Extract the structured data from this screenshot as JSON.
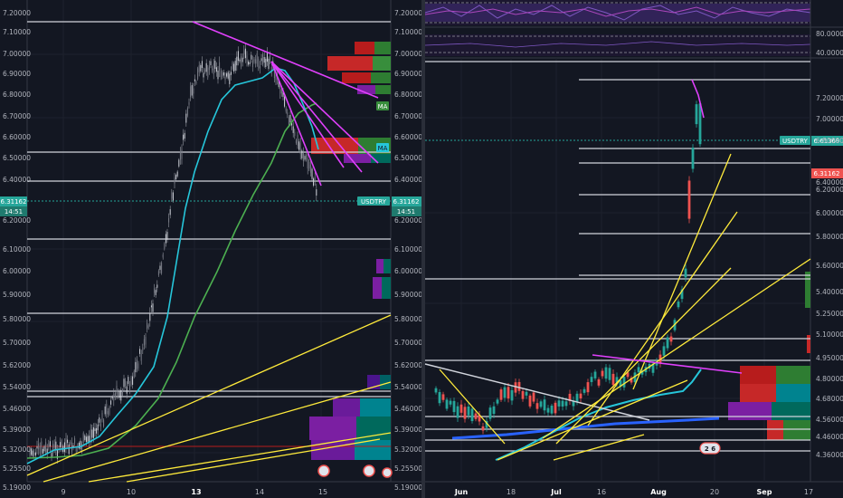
{
  "left_chart": {
    "price_axis": [
      "7.20000",
      "7.10000",
      "7.00000",
      "6.90000",
      "6.80000",
      "6.70000",
      "6.60000",
      "6.50000",
      "6.40000",
      "6.20000",
      "6.10000",
      "6.00000",
      "5.90000",
      "5.80000",
      "5.70000",
      "5.62000",
      "5.54000",
      "5.46000",
      "5.39000",
      "5.32000",
      "5.25500",
      "5.19000"
    ],
    "time_axis": [
      {
        "label": "9",
        "bold": false
      },
      {
        "label": "10",
        "bold": false
      },
      {
        "label": "13",
        "bold": true
      },
      {
        "label": "14",
        "bold": false
      },
      {
        "label": "15",
        "bold": false
      }
    ],
    "symbol_tag": "USDTRY",
    "price_tag": "6.31162",
    "countdown_tag": "14:51",
    "ma_tags": [
      "MA",
      "MA"
    ],
    "colors": {
      "candle_up": "#b2b5be",
      "ma_cyan": "#26c6da",
      "ma_green": "#4caf50",
      "trend_magenta": "#e040fb",
      "trend_yellow": "#ffeb3b",
      "level_white": "#d1d4dc",
      "tag_green": "#26a69a"
    }
  },
  "right_chart": {
    "price_axis": [
      "7.20000",
      "7.00000",
      "6.80000",
      "6.40000",
      "6.20000",
      "6.00000",
      "5.80000",
      "5.60000",
      "5.40000",
      "5.25000",
      "5.10000",
      "4.95000",
      "4.80000",
      "4.68000",
      "4.56000",
      "4.46000",
      "4.36000"
    ],
    "oscillator_axis": [
      "80.0000",
      "40.0000"
    ],
    "time_axis": [
      {
        "label": "Jun",
        "bold": true
      },
      {
        "label": "18",
        "bold": false
      },
      {
        "label": "Jul",
        "bold": true
      },
      {
        "label": "16",
        "bold": false
      },
      {
        "label": "Aug",
        "bold": true
      },
      {
        "label": "20",
        "bold": false
      },
      {
        "label": "Sep",
        "bold": true
      },
      {
        "label": "17",
        "bold": false
      }
    ],
    "symbol_tag": "USDTRY",
    "price_tag": "6.61369",
    "last_tag": "6.31162",
    "event_badge": "2 6",
    "colors": {
      "candle_up": "#26a69a",
      "candle_down": "#ef5350",
      "ma_cyan": "#26c6da",
      "ma_blue": "#2962ff",
      "trend_magenta": "#e040fb",
      "trend_yellow": "#ffeb3b",
      "osc_purple": "#7e57c2"
    }
  },
  "chart_data": [
    {
      "type": "line",
      "title": "",
      "series": [
        {
          "x": [
            8.6,
            9.0,
            9.5,
            10.0,
            10.5,
            11.0,
            11.6,
            12.0,
            12.5,
            13.0,
            13.3,
            13.6,
            14.0,
            14.2,
            14.4,
            14.6
          ],
          "values": [
            5.31,
            5.32,
            5.33,
            5.36,
            5.42,
            5.55,
            5.7,
            6.0,
            6.5,
            6.92,
            6.95,
            6.92,
            6.95,
            6.85,
            6.55,
            6.42
          ]
        },
        {
          "x": [
            8.6,
            9.2,
            9.8,
            10.4,
            11.0,
            11.6,
            12.0,
            12.4,
            12.8,
            13.2,
            13.6,
            14.0,
            14.3,
            14.5,
            14.7
          ],
          "values": [
            5.3,
            5.32,
            5.33,
            5.36,
            5.42,
            5.52,
            5.7,
            6.1,
            6.4,
            6.7,
            6.8,
            6.88,
            6.85,
            6.7,
            6.52
          ]
        },
        {
          "x": [
            8.6,
            9.2,
            10.0,
            10.8,
            11.4,
            12.0,
            12.6,
            13.2,
            13.8,
            14.2,
            14.6,
            14.9
          ],
          "values": [
            5.27,
            5.28,
            5.29,
            5.33,
            5.4,
            5.55,
            5.85,
            6.15,
            6.45,
            6.7,
            6.73,
            6.75
          ]
        }
      ],
      "ylim": [
        5.19,
        7.2
      ],
      "xlabel": "",
      "ylabel": ""
    },
    {
      "type": "line",
      "title": "",
      "series": [
        {
          "x": [
            "Jun 1",
            "Jun 15",
            "Jul 1",
            "Jul 15",
            "Aug 1",
            "Aug 8",
            "Aug 10",
            "Aug 13",
            "Aug 14"
          ],
          "values": [
            4.65,
            4.55,
            4.6,
            4.72,
            4.85,
            5.4,
            6.0,
            6.9,
            6.45
          ]
        },
        {
          "x": [
            "Jun 10",
            "Jul 1",
            "Jul 20",
            "Aug 1",
            "Aug 10"
          ],
          "values": [
            4.52,
            4.6,
            4.72,
            4.82,
            4.9
          ]
        }
      ],
      "ylim": [
        4.36,
        7.3
      ],
      "xlabel": "",
      "ylabel": ""
    }
  ]
}
